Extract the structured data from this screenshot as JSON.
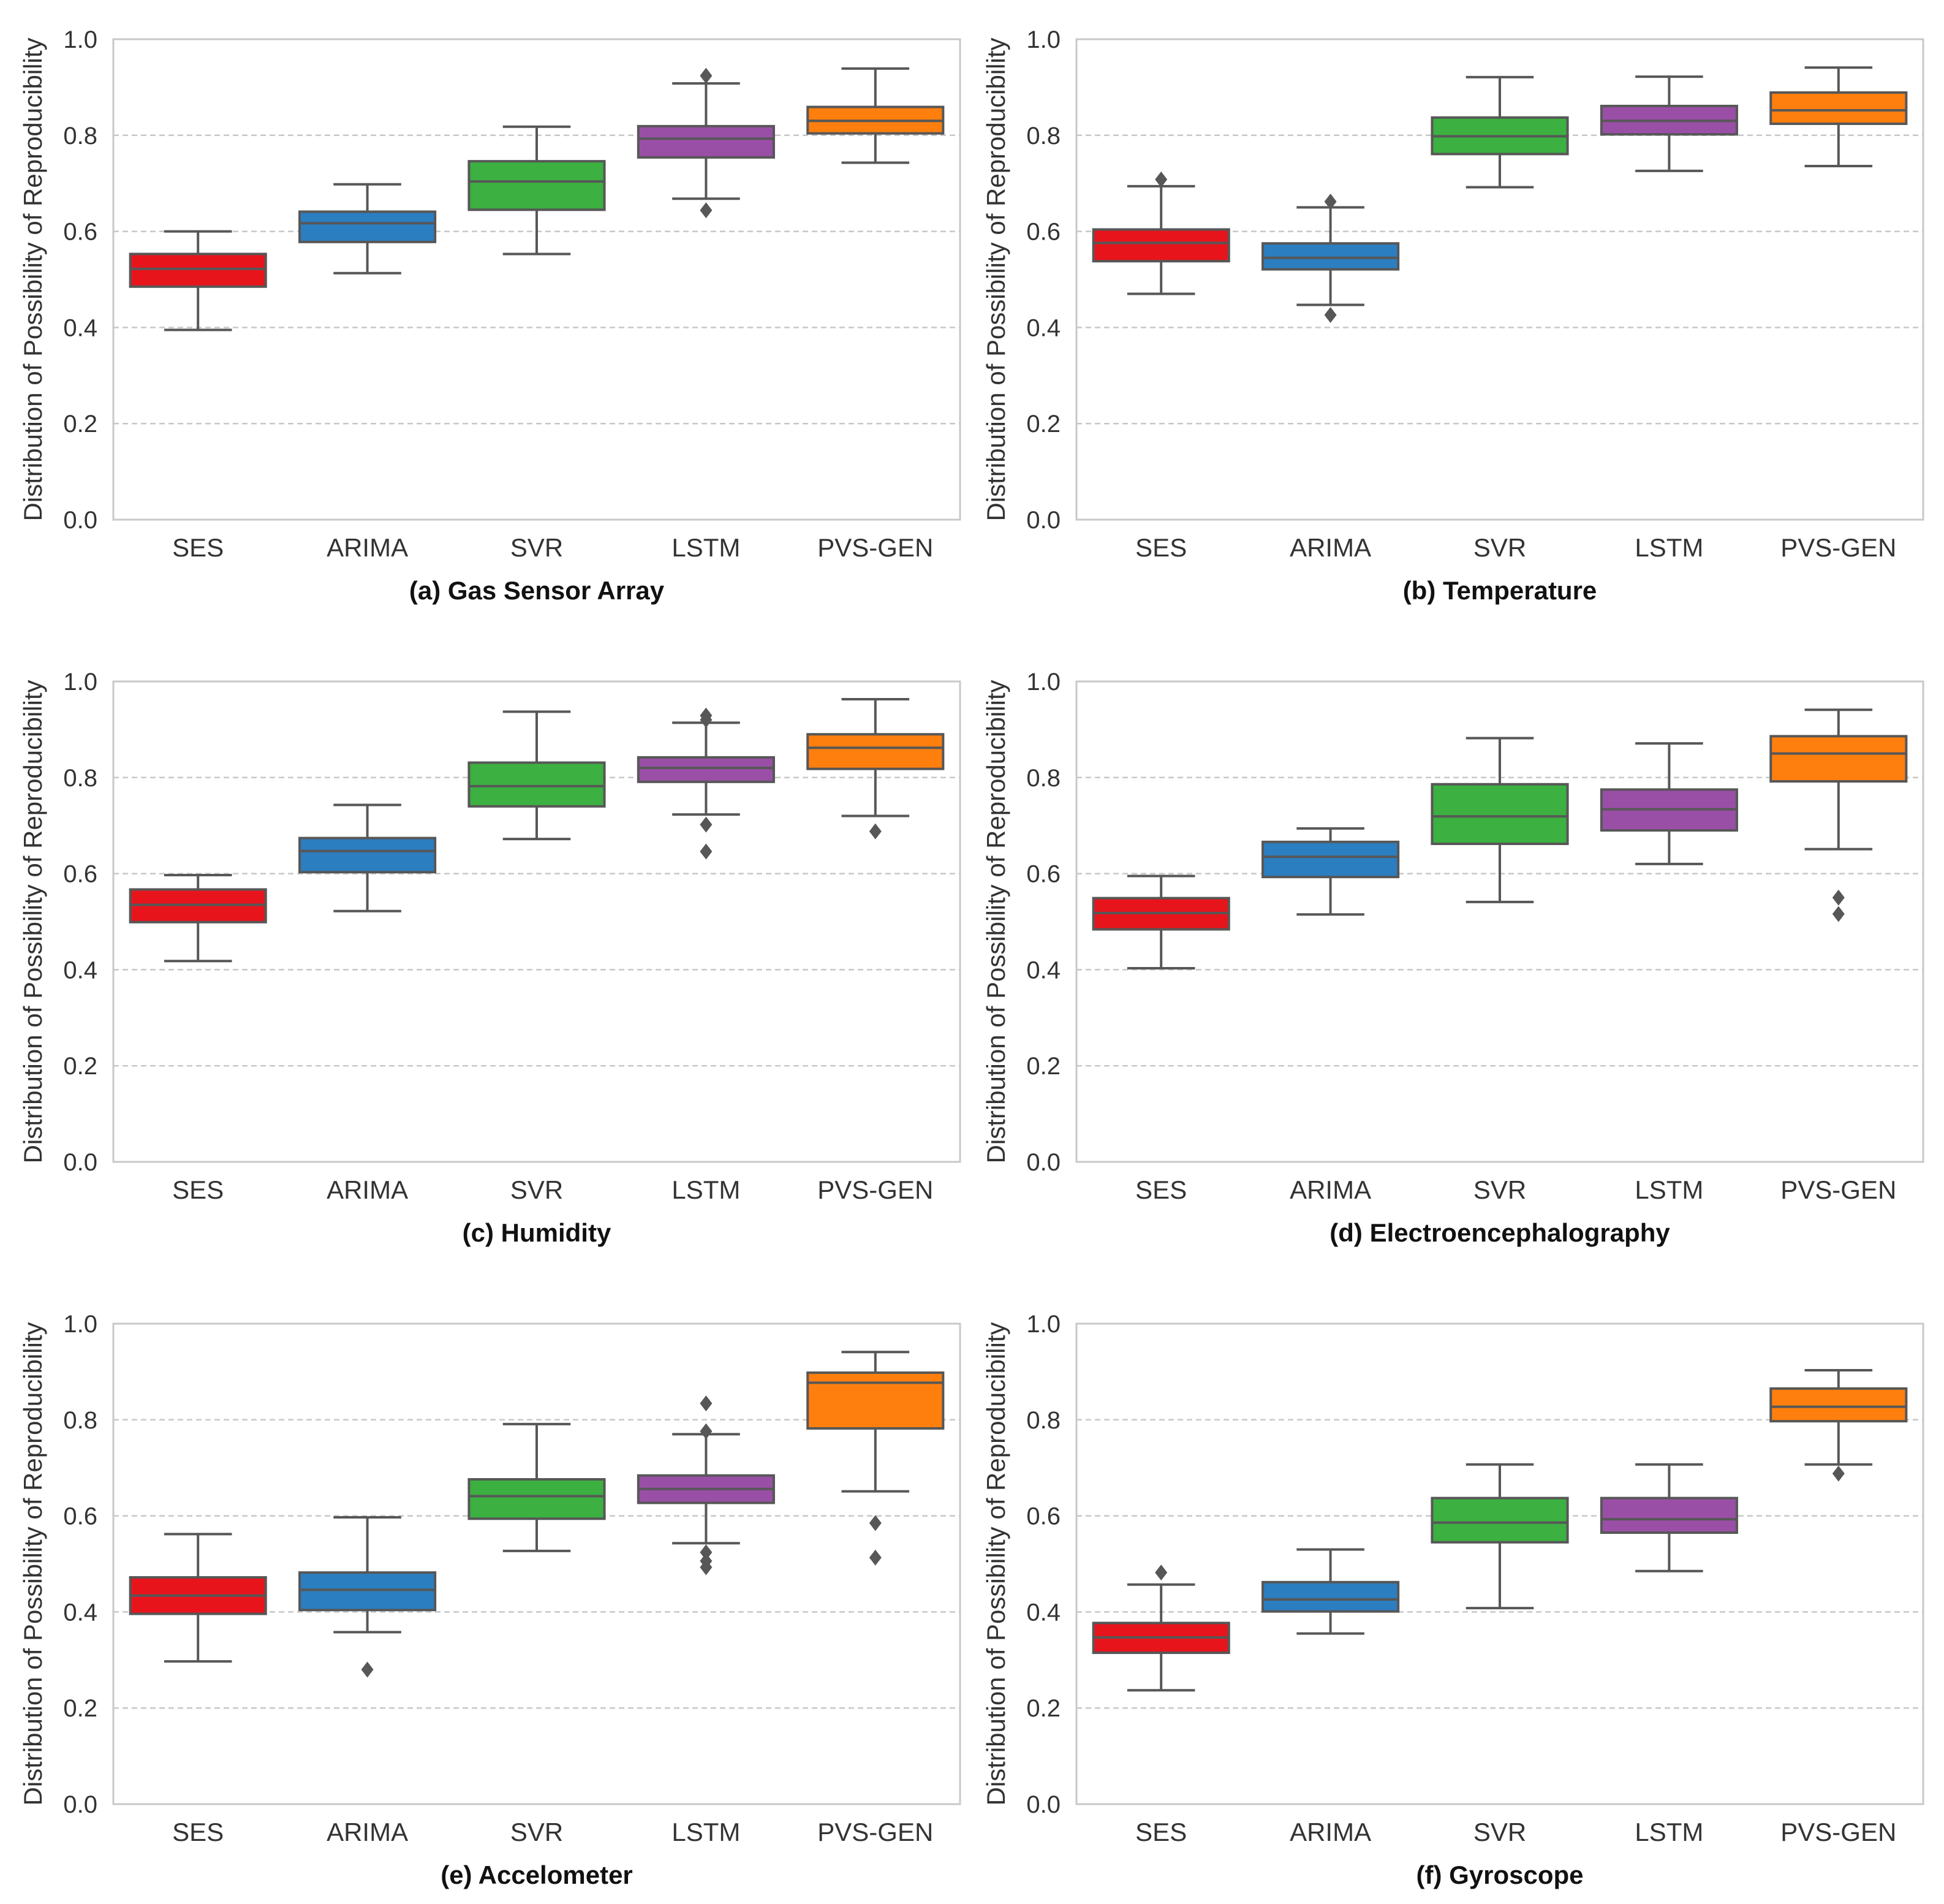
{
  "chart_data": [
    {
      "type": "box",
      "title": "(a) Gas Sensor Array",
      "ylabel": "Distribution of Possibility of Reproducibility",
      "ylim": [
        0,
        1
      ],
      "yticks": [
        "0.0",
        "0.2",
        "0.4",
        "0.6",
        "0.8",
        "1.0"
      ],
      "categories": [
        "SES",
        "ARIMA",
        "SVR",
        "LSTM",
        "PVS-GEN"
      ],
      "colors": [
        "#e8141c",
        "#2b7ec0",
        "#3cb040",
        "#9a4fa6",
        "#ff7f0e"
      ],
      "boxes": [
        {
          "whisker_low": 0.395,
          "q1": 0.485,
          "median": 0.522,
          "q3": 0.553,
          "whisker_high": 0.6,
          "outliers": []
        },
        {
          "whisker_low": 0.513,
          "q1": 0.578,
          "median": 0.617,
          "q3": 0.641,
          "whisker_high": 0.698,
          "outliers": []
        },
        {
          "whisker_low": 0.553,
          "q1": 0.645,
          "median": 0.704,
          "q3": 0.746,
          "whisker_high": 0.818,
          "outliers": []
        },
        {
          "whisker_low": 0.668,
          "q1": 0.754,
          "median": 0.793,
          "q3": 0.819,
          "whisker_high": 0.908,
          "outliers": [
            0.924,
            0.644
          ]
        },
        {
          "whisker_low": 0.743,
          "q1": 0.804,
          "median": 0.83,
          "q3": 0.859,
          "whisker_high": 0.939,
          "outliers": []
        }
      ]
    },
    {
      "type": "box",
      "title": "(b) Temperature",
      "ylabel": "Distribution of Possibility of Reproducibility",
      "ylim": [
        0,
        1
      ],
      "yticks": [
        "0.0",
        "0.2",
        "0.4",
        "0.6",
        "0.8",
        "1.0"
      ],
      "categories": [
        "SES",
        "ARIMA",
        "SVR",
        "LSTM",
        "PVS-GEN"
      ],
      "colors": [
        "#e8141c",
        "#2b7ec0",
        "#3cb040",
        "#9a4fa6",
        "#ff7f0e"
      ],
      "boxes": [
        {
          "whisker_low": 0.47,
          "q1": 0.538,
          "median": 0.576,
          "q3": 0.604,
          "whisker_high": 0.694,
          "outliers": [
            0.708
          ]
        },
        {
          "whisker_low": 0.447,
          "q1": 0.521,
          "median": 0.545,
          "q3": 0.575,
          "whisker_high": 0.65,
          "outliers": [
            0.662,
            0.426
          ]
        },
        {
          "whisker_low": 0.692,
          "q1": 0.761,
          "median": 0.798,
          "q3": 0.837,
          "whisker_high": 0.921,
          "outliers": []
        },
        {
          "whisker_low": 0.726,
          "q1": 0.802,
          "median": 0.83,
          "q3": 0.861,
          "whisker_high": 0.922,
          "outliers": []
        },
        {
          "whisker_low": 0.736,
          "q1": 0.824,
          "median": 0.852,
          "q3": 0.889,
          "whisker_high": 0.941,
          "outliers": []
        }
      ]
    },
    {
      "type": "box",
      "title": "(c) Humidity",
      "ylabel": "Distribution of Possibility of Reproducibility",
      "ylim": [
        0,
        1
      ],
      "yticks": [
        "0.0",
        "0.2",
        "0.4",
        "0.6",
        "0.8",
        "1.0"
      ],
      "categories": [
        "SES",
        "ARIMA",
        "SVR",
        "LSTM",
        "PVS-GEN"
      ],
      "colors": [
        "#e8141c",
        "#2b7ec0",
        "#3cb040",
        "#9a4fa6",
        "#ff7f0e"
      ],
      "boxes": [
        {
          "whisker_low": 0.418,
          "q1": 0.499,
          "median": 0.535,
          "q3": 0.567,
          "whisker_high": 0.597,
          "outliers": []
        },
        {
          "whisker_low": 0.522,
          "q1": 0.603,
          "median": 0.647,
          "q3": 0.674,
          "whisker_high": 0.743,
          "outliers": []
        },
        {
          "whisker_low": 0.672,
          "q1": 0.74,
          "median": 0.782,
          "q3": 0.831,
          "whisker_high": 0.937,
          "outliers": []
        },
        {
          "whisker_low": 0.723,
          "q1": 0.791,
          "median": 0.82,
          "q3": 0.842,
          "whisker_high": 0.914,
          "outliers": [
            0.929,
            0.92,
            0.702,
            0.646
          ]
        },
        {
          "whisker_low": 0.72,
          "q1": 0.818,
          "median": 0.862,
          "q3": 0.89,
          "whisker_high": 0.963,
          "outliers": [
            0.688
          ]
        }
      ]
    },
    {
      "type": "box",
      "title": "(d) Electroencephalography",
      "ylabel": "Distribution of Possibility of Reproducibility",
      "ylim": [
        0,
        1
      ],
      "yticks": [
        "0.0",
        "0.2",
        "0.4",
        "0.6",
        "0.8",
        "1.0"
      ],
      "categories": [
        "SES",
        "ARIMA",
        "SVR",
        "LSTM",
        "PVS-GEN"
      ],
      "colors": [
        "#e8141c",
        "#2b7ec0",
        "#3cb040",
        "#9a4fa6",
        "#ff7f0e"
      ],
      "boxes": [
        {
          "whisker_low": 0.403,
          "q1": 0.484,
          "median": 0.518,
          "q3": 0.549,
          "whisker_high": 0.595,
          "outliers": []
        },
        {
          "whisker_low": 0.515,
          "q1": 0.593,
          "median": 0.635,
          "q3": 0.666,
          "whisker_high": 0.694,
          "outliers": []
        },
        {
          "whisker_low": 0.541,
          "q1": 0.662,
          "median": 0.719,
          "q3": 0.786,
          "whisker_high": 0.882,
          "outliers": []
        },
        {
          "whisker_low": 0.62,
          "q1": 0.69,
          "median": 0.734,
          "q3": 0.775,
          "whisker_high": 0.871,
          "outliers": []
        },
        {
          "whisker_low": 0.651,
          "q1": 0.792,
          "median": 0.85,
          "q3": 0.886,
          "whisker_high": 0.941,
          "outliers": [
            0.55,
            0.516
          ]
        }
      ]
    },
    {
      "type": "box",
      "title": "(e) Accelometer",
      "ylabel": "Distribution of Possibility of Reproducibility",
      "ylim": [
        0,
        1
      ],
      "yticks": [
        "0.0",
        "0.2",
        "0.4",
        "0.6",
        "0.8",
        "1.0"
      ],
      "categories": [
        "SES",
        "ARIMA",
        "SVR",
        "LSTM",
        "PVS-GEN"
      ],
      "colors": [
        "#e8141c",
        "#2b7ec0",
        "#3cb040",
        "#9a4fa6",
        "#ff7f0e"
      ],
      "boxes": [
        {
          "whisker_low": 0.297,
          "q1": 0.396,
          "median": 0.434,
          "q3": 0.472,
          "whisker_high": 0.562,
          "outliers": []
        },
        {
          "whisker_low": 0.358,
          "q1": 0.404,
          "median": 0.446,
          "q3": 0.482,
          "whisker_high": 0.597,
          "outliers": [
            0.28
          ]
        },
        {
          "whisker_low": 0.527,
          "q1": 0.594,
          "median": 0.641,
          "q3": 0.676,
          "whisker_high": 0.791,
          "outliers": []
        },
        {
          "whisker_low": 0.543,
          "q1": 0.627,
          "median": 0.656,
          "q3": 0.684,
          "whisker_high": 0.77,
          "outliers": [
            0.834,
            0.776,
            0.524,
            0.506,
            0.493
          ]
        },
        {
          "whisker_low": 0.651,
          "q1": 0.782,
          "median": 0.877,
          "q3": 0.898,
          "whisker_high": 0.941,
          "outliers": [
            0.585,
            0.513
          ]
        }
      ]
    },
    {
      "type": "box",
      "title": "(f) Gyroscope",
      "ylabel": "Distribution of Possibility of Reproducibility",
      "ylim": [
        0,
        1
      ],
      "yticks": [
        "0.0",
        "0.2",
        "0.4",
        "0.6",
        "0.8",
        "1.0"
      ],
      "categories": [
        "SES",
        "ARIMA",
        "SVR",
        "LSTM",
        "PVS-GEN"
      ],
      "colors": [
        "#e8141c",
        "#2b7ec0",
        "#3cb040",
        "#9a4fa6",
        "#ff7f0e"
      ],
      "boxes": [
        {
          "whisker_low": 0.237,
          "q1": 0.315,
          "median": 0.347,
          "q3": 0.377,
          "whisker_high": 0.457,
          "outliers": [
            0.482
          ]
        },
        {
          "whisker_low": 0.355,
          "q1": 0.401,
          "median": 0.426,
          "q3": 0.462,
          "whisker_high": 0.53,
          "outliers": []
        },
        {
          "whisker_low": 0.408,
          "q1": 0.545,
          "median": 0.586,
          "q3": 0.637,
          "whisker_high": 0.707,
          "outliers": []
        },
        {
          "whisker_low": 0.485,
          "q1": 0.565,
          "median": 0.593,
          "q3": 0.637,
          "whisker_high": 0.707,
          "outliers": []
        },
        {
          "whisker_low": 0.707,
          "q1": 0.797,
          "median": 0.827,
          "q3": 0.865,
          "whisker_high": 0.903,
          "outliers": [
            0.688
          ]
        }
      ]
    }
  ]
}
